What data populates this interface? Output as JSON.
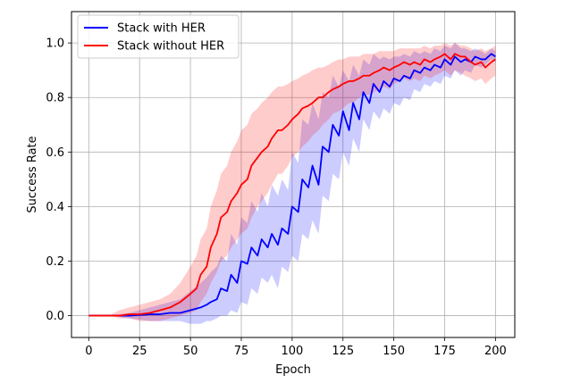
{
  "chart_data": {
    "type": "line",
    "title": "",
    "xlabel": "Epoch",
    "ylabel": "Success Rate",
    "xlim": [
      -8.5,
      209.5
    ],
    "ylim": [
      -0.08,
      1.115
    ],
    "xticks": [
      0,
      25,
      50,
      75,
      100,
      125,
      150,
      175,
      200
    ],
    "xtick_labels": [
      "0",
      "25",
      "50",
      "75",
      "100",
      "125",
      "150",
      "175",
      "200"
    ],
    "yticks": [
      0.0,
      0.2,
      0.4,
      0.6,
      0.8,
      1.0
    ],
    "ytick_labels": [
      "0.0",
      "0.2",
      "0.4",
      "0.6",
      "0.8",
      "1.0"
    ],
    "grid": true,
    "legend_position": "top-left",
    "series": [
      {
        "name": "Stack with HER",
        "color": "#0000ff",
        "band_color": "#0000ff",
        "x": [
          0,
          10,
          20,
          30,
          35,
          40,
          45,
          50,
          55,
          58,
          60,
          63,
          65,
          68,
          70,
          73,
          75,
          78,
          80,
          83,
          85,
          88,
          90,
          93,
          95,
          98,
          100,
          103,
          105,
          108,
          110,
          113,
          115,
          118,
          120,
          123,
          125,
          128,
          130,
          133,
          135,
          138,
          140,
          143,
          145,
          148,
          150,
          153,
          155,
          158,
          160,
          163,
          165,
          168,
          170,
          173,
          175,
          178,
          180,
          183,
          185,
          188,
          190,
          193,
          195,
          198,
          200
        ],
        "y": [
          0.0,
          0.0,
          0.0,
          0.005,
          0.005,
          0.01,
          0.01,
          0.02,
          0.03,
          0.04,
          0.05,
          0.06,
          0.1,
          0.09,
          0.15,
          0.12,
          0.2,
          0.19,
          0.25,
          0.22,
          0.28,
          0.25,
          0.3,
          0.26,
          0.32,
          0.3,
          0.4,
          0.38,
          0.5,
          0.47,
          0.55,
          0.48,
          0.62,
          0.6,
          0.7,
          0.66,
          0.75,
          0.68,
          0.78,
          0.72,
          0.82,
          0.78,
          0.85,
          0.82,
          0.86,
          0.84,
          0.87,
          0.86,
          0.88,
          0.87,
          0.9,
          0.89,
          0.91,
          0.9,
          0.92,
          0.91,
          0.94,
          0.92,
          0.95,
          0.93,
          0.94,
          0.93,
          0.95,
          0.94,
          0.94,
          0.96,
          0.95
        ],
        "lower": [
          0.0,
          0.0,
          -0.01,
          -0.02,
          -0.02,
          -0.02,
          -0.02,
          -0.03,
          -0.03,
          -0.02,
          -0.02,
          -0.01,
          0.0,
          0.0,
          0.02,
          0.01,
          0.05,
          0.04,
          0.1,
          0.08,
          0.14,
          0.12,
          0.15,
          0.1,
          0.18,
          0.16,
          0.22,
          0.2,
          0.3,
          0.28,
          0.35,
          0.3,
          0.44,
          0.42,
          0.52,
          0.5,
          0.6,
          0.55,
          0.65,
          0.6,
          0.72,
          0.68,
          0.75,
          0.72,
          0.76,
          0.74,
          0.78,
          0.77,
          0.8,
          0.79,
          0.83,
          0.82,
          0.85,
          0.84,
          0.86,
          0.85,
          0.88,
          0.87,
          0.9,
          0.88,
          0.9,
          0.89,
          0.92,
          0.91,
          0.92,
          0.94,
          0.93
        ],
        "upper": [
          0.0,
          0.0,
          0.01,
          0.03,
          0.04,
          0.05,
          0.06,
          0.09,
          0.12,
          0.14,
          0.16,
          0.18,
          0.22,
          0.2,
          0.3,
          0.26,
          0.36,
          0.34,
          0.42,
          0.38,
          0.45,
          0.4,
          0.48,
          0.44,
          0.5,
          0.46,
          0.6,
          0.56,
          0.72,
          0.7,
          0.78,
          0.72,
          0.82,
          0.8,
          0.88,
          0.84,
          0.9,
          0.86,
          0.92,
          0.88,
          0.94,
          0.92,
          0.96,
          0.94,
          0.95,
          0.94,
          0.95,
          0.95,
          0.96,
          0.95,
          0.97,
          0.96,
          0.97,
          0.96,
          0.98,
          0.97,
          0.99,
          0.98,
          1.0,
          0.98,
          0.98,
          0.97,
          0.98,
          0.97,
          0.96,
          0.98,
          0.97
        ]
      },
      {
        "name": "Stack without HER",
        "color": "#ff0000",
        "band_color": "#ff0000",
        "x": [
          0,
          10,
          15,
          20,
          25,
          30,
          35,
          40,
          45,
          50,
          53,
          55,
          58,
          60,
          63,
          65,
          68,
          70,
          73,
          75,
          78,
          80,
          83,
          85,
          88,
          90,
          93,
          95,
          98,
          100,
          103,
          105,
          108,
          110,
          113,
          115,
          118,
          120,
          123,
          125,
          128,
          130,
          133,
          135,
          138,
          140,
          143,
          145,
          148,
          150,
          153,
          155,
          158,
          160,
          163,
          165,
          168,
          170,
          173,
          175,
          178,
          180,
          183,
          185,
          188,
          190,
          193,
          195,
          198,
          200
        ],
        "y": [
          0.0,
          0.0,
          0.0,
          0.005,
          0.005,
          0.01,
          0.02,
          0.03,
          0.05,
          0.08,
          0.1,
          0.15,
          0.18,
          0.25,
          0.3,
          0.36,
          0.38,
          0.42,
          0.45,
          0.48,
          0.5,
          0.55,
          0.58,
          0.6,
          0.62,
          0.65,
          0.68,
          0.68,
          0.7,
          0.72,
          0.74,
          0.76,
          0.77,
          0.78,
          0.8,
          0.8,
          0.82,
          0.83,
          0.84,
          0.85,
          0.86,
          0.86,
          0.87,
          0.88,
          0.88,
          0.89,
          0.9,
          0.91,
          0.9,
          0.91,
          0.92,
          0.93,
          0.92,
          0.93,
          0.92,
          0.94,
          0.93,
          0.94,
          0.95,
          0.96,
          0.94,
          0.96,
          0.95,
          0.95,
          0.93,
          0.92,
          0.93,
          0.91,
          0.93,
          0.94
        ],
        "lower": [
          0.0,
          0.0,
          -0.01,
          -0.01,
          -0.02,
          -0.02,
          -0.02,
          -0.01,
          0.0,
          0.01,
          0.02,
          0.05,
          0.08,
          0.12,
          0.16,
          0.2,
          0.22,
          0.25,
          0.28,
          0.3,
          0.32,
          0.36,
          0.4,
          0.42,
          0.45,
          0.48,
          0.52,
          0.52,
          0.55,
          0.58,
          0.6,
          0.62,
          0.64,
          0.66,
          0.68,
          0.7,
          0.72,
          0.74,
          0.75,
          0.76,
          0.78,
          0.78,
          0.8,
          0.81,
          0.81,
          0.82,
          0.83,
          0.84,
          0.83,
          0.85,
          0.86,
          0.87,
          0.86,
          0.87,
          0.86,
          0.88,
          0.87,
          0.88,
          0.89,
          0.9,
          0.88,
          0.9,
          0.89,
          0.88,
          0.87,
          0.86,
          0.87,
          0.85,
          0.87,
          0.88
        ],
        "upper": [
          0.0,
          0.0,
          0.02,
          0.03,
          0.04,
          0.05,
          0.06,
          0.08,
          0.12,
          0.18,
          0.22,
          0.28,
          0.32,
          0.4,
          0.46,
          0.52,
          0.55,
          0.6,
          0.64,
          0.68,
          0.7,
          0.74,
          0.76,
          0.78,
          0.8,
          0.82,
          0.84,
          0.84,
          0.85,
          0.86,
          0.87,
          0.88,
          0.89,
          0.9,
          0.91,
          0.91,
          0.92,
          0.93,
          0.94,
          0.94,
          0.95,
          0.95,
          0.95,
          0.96,
          0.96,
          0.96,
          0.97,
          0.97,
          0.97,
          0.97,
          0.98,
          0.98,
          0.98,
          0.98,
          0.98,
          0.99,
          0.98,
          0.99,
          0.99,
          1.0,
          0.99,
          1.0,
          0.99,
          0.99,
          0.98,
          0.97,
          0.98,
          0.97,
          0.98,
          0.99
        ]
      }
    ]
  }
}
